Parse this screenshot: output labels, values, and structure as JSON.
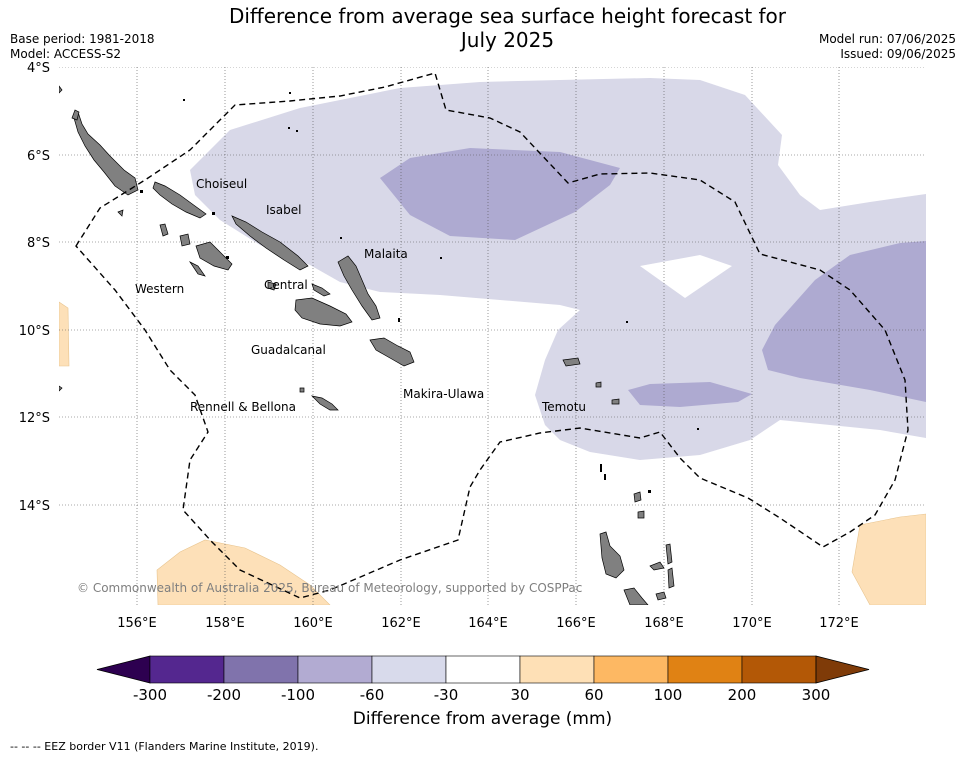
{
  "header": {
    "title_line1": "Difference from average sea surface height forecast for",
    "title_line2": "July 2025",
    "base_period": "Base period: 1981-2018",
    "model": "Model: ACCESS-S2",
    "model_run": "Model run: 07/06/2025",
    "issued": "Issued: 09/06/2025"
  },
  "map": {
    "lat_labels": [
      "4°S",
      "6°S",
      "8°S",
      "10°S",
      "12°S",
      "14°S"
    ],
    "lon_labels": [
      "156°E",
      "158°E",
      "160°E",
      "162°E",
      "164°E",
      "166°E",
      "168°E",
      "170°E",
      "172°E"
    ],
    "places": [
      "Choiseul",
      "Isabel",
      "Malaita",
      "Western",
      "Central",
      "Guadalcanal",
      "Makira-Ulawa",
      "Rennell & Bellona",
      "Temotu"
    ],
    "copyright": "© Commonwealth of Australia 2025, Bureau of Meteorology, supported by COSPPac",
    "colors": {
      "land": "#808080",
      "class_neg100_neg60": "#aeaad1",
      "class_neg60_neg30": "#d8d8e8",
      "class_30_60": "#fde0b8",
      "eez_line": "#000000"
    }
  },
  "colorbar": {
    "ticks": [
      "-300",
      "-200",
      "-100",
      "-60",
      "-30",
      "30",
      "60",
      "100",
      "200",
      "300"
    ],
    "colors": [
      "#2d0050",
      "#54278f",
      "#8073ac",
      "#b2abd2",
      "#d8daeb",
      "#ffffff",
      "#fee0b6",
      "#fdb863",
      "#e08214",
      "#b35806",
      "#7f3b08"
    ],
    "title": "Difference from average (mm)"
  },
  "footer": {
    "legend_text": "--  --  -- EEZ border V11 (Flanders Marine Institute, 2019)."
  }
}
